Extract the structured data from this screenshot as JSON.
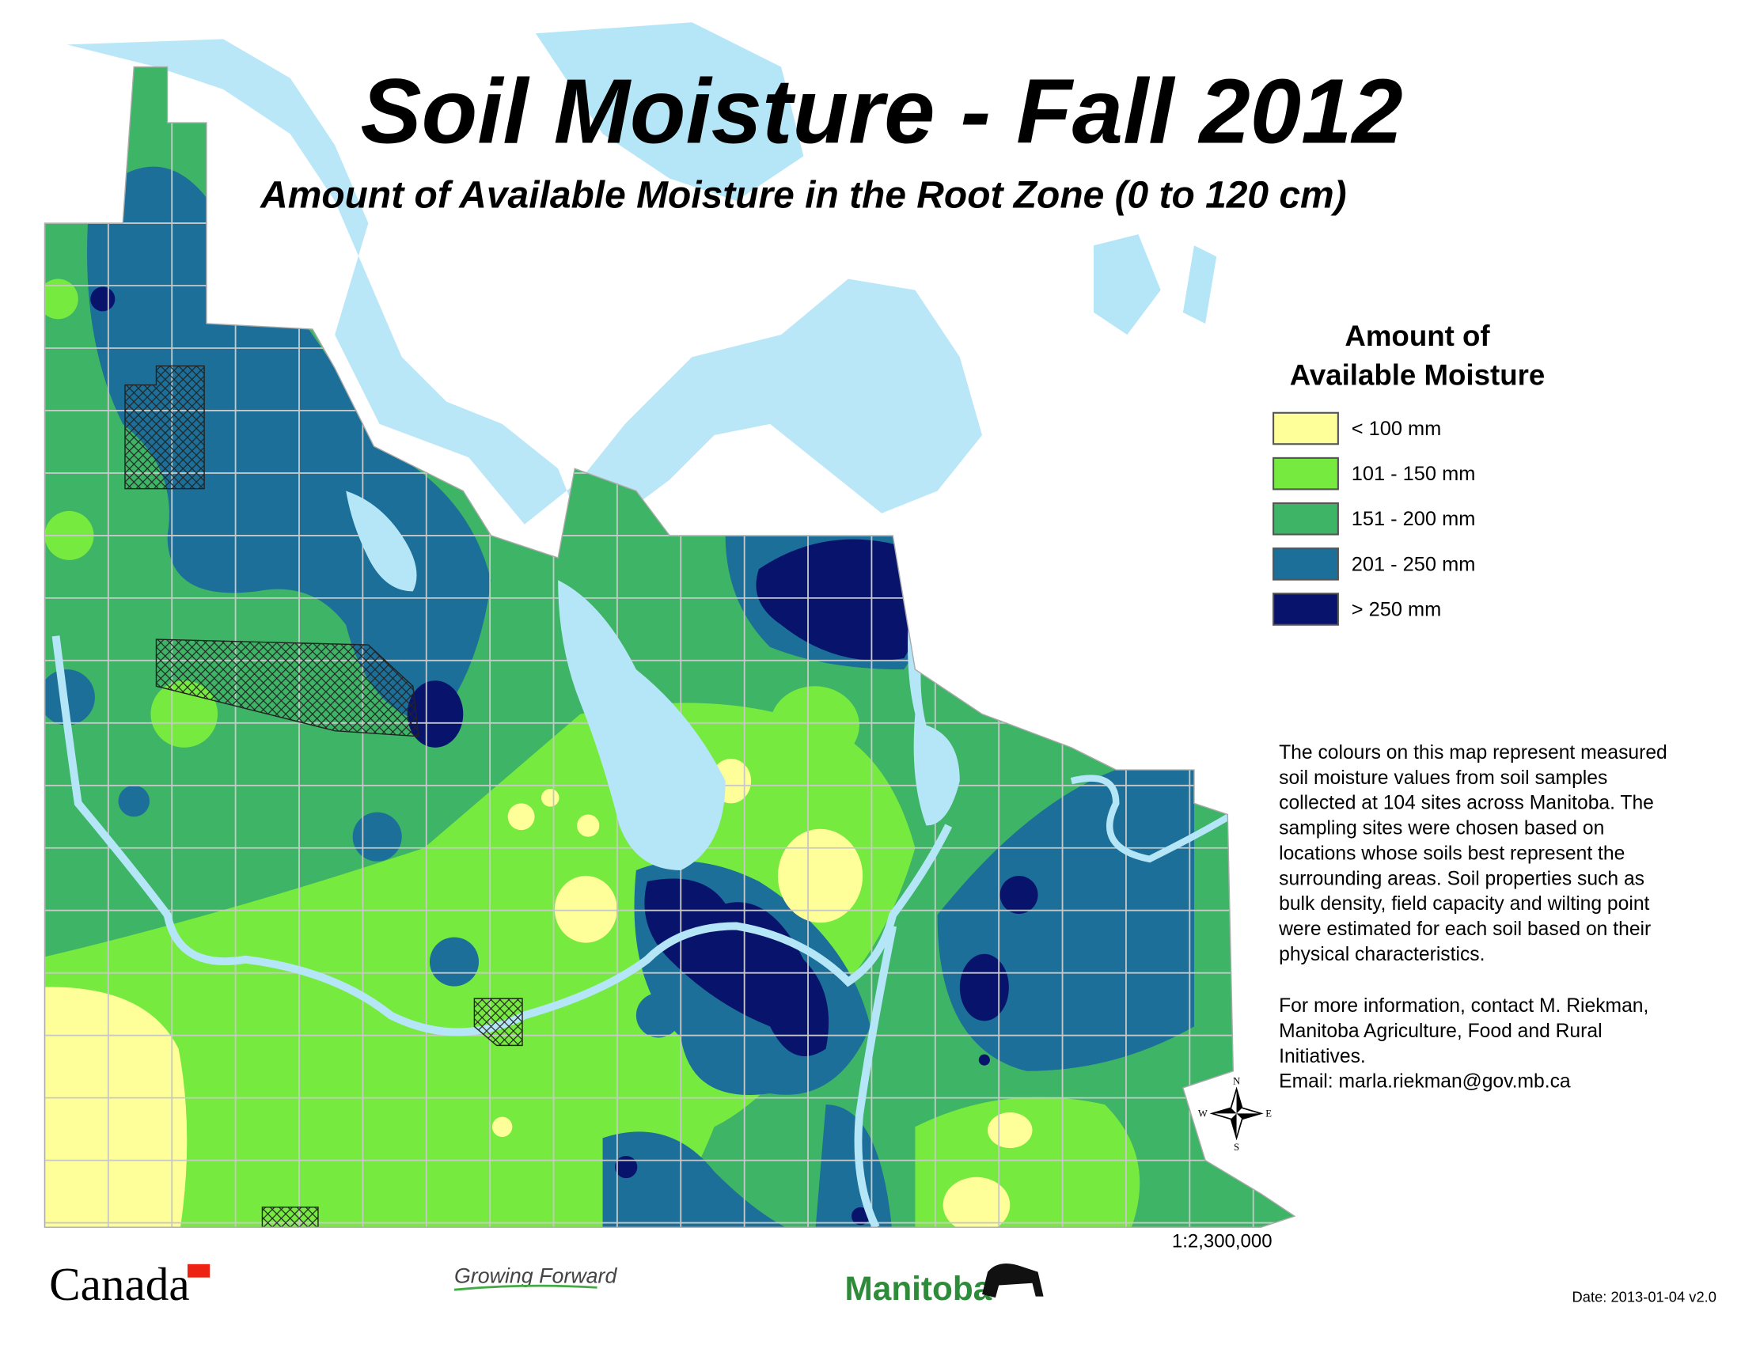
{
  "title": "Soil Moisture - Fall 2012",
  "subtitle": "Amount of Available Moisture in the Root Zone (0 to 120 cm)",
  "legend": {
    "title": [
      "Amount of",
      "Available Moisture"
    ],
    "items": [
      {
        "label": "< 100 mm",
        "color": "#ffff99"
      },
      {
        "label": "101 - 150 mm",
        "color": "#77ea3f"
      },
      {
        "label": "151 - 200 mm",
        "color": "#3db466"
      },
      {
        "label": "201 - 250 mm",
        "color": "#1b6f98"
      },
      {
        "label": "> 250 mm",
        "color": "#08136c"
      }
    ]
  },
  "description": [
    "The colours on this map represent measured",
    "soil moisture values from soil samples",
    "collected at 104 sites across Manitoba.  The",
    "sampling sites were chosen based on",
    "locations whose soils best represent the",
    "surrounding areas.  Soil properties such as",
    "bulk density, field capacity and wilting point",
    "were estimated for each soil based on their",
    "physical characteristics."
  ],
  "contact": [
    "For more information, contact M. Riekman,",
    "Manitoba Agriculture, Food and Rural",
    "Initiatives.",
    "Email: marla.riekman@gov.mb.ca"
  ],
  "compass": {
    "n": "N",
    "s": "S",
    "e": "E",
    "w": "W"
  },
  "scale": "1:2,300,000",
  "date": "Date: 2013-01-04 v2.0",
  "logos": {
    "canada": "Canada",
    "growing_forward": "Growing Forward",
    "manitoba": "Manitoba"
  }
}
